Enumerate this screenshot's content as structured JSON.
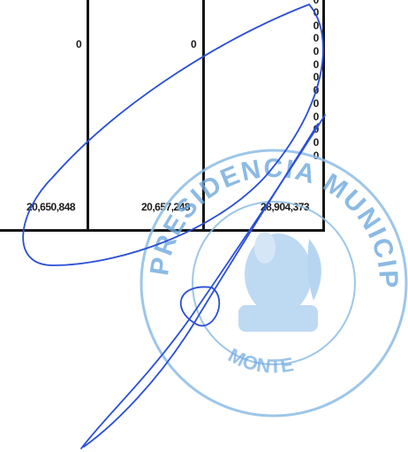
{
  "table": {
    "columns": [
      {
        "zero": "0",
        "total": "20,650,848"
      },
      {
        "zero": "0",
        "total": "20,657,248"
      },
      {
        "total": "28,904,373"
      }
    ],
    "last_column_zeros": [
      "0",
      "0",
      "0",
      "0",
      "0",
      "0",
      "0",
      "0",
      "0",
      "0",
      "0",
      "0",
      "0"
    ]
  },
  "seal": {
    "text_top": "PRESIDENCIA MUNICIPAL",
    "text_bottom": "MONTE",
    "color": "#7fb3e0"
  },
  "signature": {
    "color": "#2a4fd6"
  }
}
